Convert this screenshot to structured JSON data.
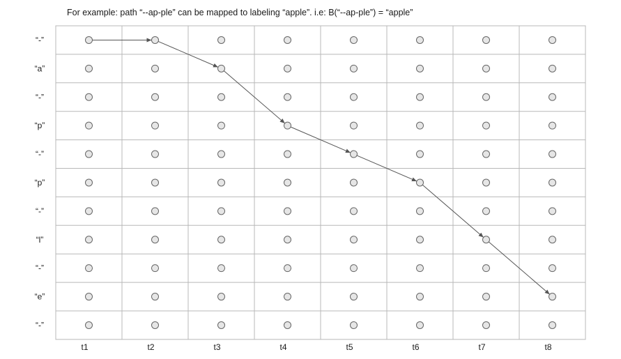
{
  "caption": "For example: path “--ap-ple” can be mapped to labeling “apple”. i.e: B(“--ap-ple”) = “apple”",
  "rows": [
    "“-”",
    "“a”",
    "“-”",
    "“p”",
    "“-”",
    "“p”",
    "“-”",
    "“l”",
    "“-”",
    "“e”",
    "“-”"
  ],
  "columns": [
    "t1",
    "t2",
    "t3",
    "t4",
    "t5",
    "t6",
    "t7",
    "t8"
  ],
  "path": [
    {
      "t": 0,
      "row": 0
    },
    {
      "t": 1,
      "row": 0
    },
    {
      "t": 2,
      "row": 1
    },
    {
      "t": 3,
      "row": 3
    },
    {
      "t": 4,
      "row": 4
    },
    {
      "t": 5,
      "row": 5
    },
    {
      "t": 6,
      "row": 7
    },
    {
      "t": 7,
      "row": 9
    }
  ],
  "colors": {
    "grid": "#b8b8b8",
    "node_fill": "#e6e6e6",
    "node_stroke": "#666666",
    "arrow": "#555555"
  }
}
